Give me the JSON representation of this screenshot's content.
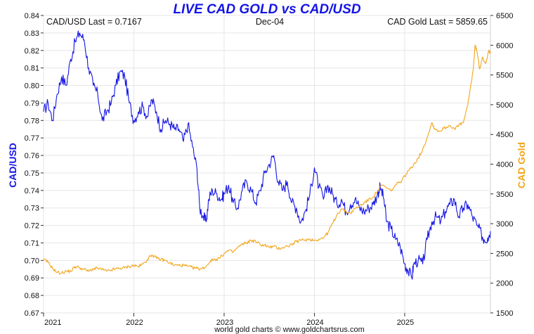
{
  "chart_data": {
    "type": "line",
    "title": "LIVE CAD GOLD vs CAD/USD",
    "label_left_value": "CAD/USD Last = 0.7167",
    "label_center_date": "Dec-04",
    "label_right_value": "CAD Gold Last = 5859.65",
    "ylabel_left": "CAD/USD",
    "ylabel_right": "CAD Gold",
    "credit": "world gold charts © www.goldchartsrus.com",
    "x_ticks": [
      "2021",
      "2022",
      "2023",
      "2024",
      "2025"
    ],
    "xlim": [
      2021.0,
      2025.95
    ],
    "y_left": {
      "range": [
        0.67,
        0.84
      ],
      "ticks": [
        "0.67",
        "0.68",
        "0.69",
        "0.70",
        "0.71",
        "0.72",
        "0.73",
        "0.74",
        "0.75",
        "0.76",
        "0.77",
        "0.78",
        "0.79",
        "0.80",
        "0.81",
        "0.82",
        "0.83",
        "0.84"
      ]
    },
    "y_right": {
      "range": [
        1500,
        6500
      ],
      "ticks": [
        "1500",
        "2000",
        "2500",
        "3000",
        "3500",
        "4000",
        "4500",
        "5000",
        "5500",
        "6000",
        "6500"
      ]
    },
    "grid": true,
    "series": [
      {
        "name": "CAD/USD",
        "axis": "left",
        "color": "#1515e6",
        "points": [
          [
            2021.0,
            0.785
          ],
          [
            2021.05,
            0.79
          ],
          [
            2021.1,
            0.78
          ],
          [
            2021.15,
            0.795
          ],
          [
            2021.2,
            0.805
          ],
          [
            2021.25,
            0.8
          ],
          [
            2021.3,
            0.815
          ],
          [
            2021.35,
            0.825
          ],
          [
            2021.4,
            0.83
          ],
          [
            2021.45,
            0.826
          ],
          [
            2021.5,
            0.81
          ],
          [
            2021.55,
            0.8
          ],
          [
            2021.6,
            0.795
          ],
          [
            2021.65,
            0.78
          ],
          [
            2021.7,
            0.785
          ],
          [
            2021.75,
            0.79
          ],
          [
            2021.8,
            0.8
          ],
          [
            2021.85,
            0.808
          ],
          [
            2021.9,
            0.805
          ],
          [
            2021.95,
            0.79
          ],
          [
            2022.0,
            0.78
          ],
          [
            2022.05,
            0.785
          ],
          [
            2022.1,
            0.788
          ],
          [
            2022.15,
            0.782
          ],
          [
            2022.2,
            0.792
          ],
          [
            2022.25,
            0.785
          ],
          [
            2022.3,
            0.775
          ],
          [
            2022.35,
            0.78
          ],
          [
            2022.4,
            0.778
          ],
          [
            2022.45,
            0.775
          ],
          [
            2022.5,
            0.775
          ],
          [
            2022.55,
            0.768
          ],
          [
            2022.6,
            0.778
          ],
          [
            2022.65,
            0.765
          ],
          [
            2022.7,
            0.752
          ],
          [
            2022.73,
            0.73
          ],
          [
            2022.77,
            0.725
          ],
          [
            2022.8,
            0.722
          ],
          [
            2022.83,
            0.735
          ],
          [
            2022.87,
            0.74
          ],
          [
            2022.92,
            0.738
          ],
          [
            2022.97,
            0.735
          ],
          [
            2023.0,
            0.738
          ],
          [
            2023.05,
            0.743
          ],
          [
            2023.1,
            0.733
          ],
          [
            2023.15,
            0.73
          ],
          [
            2023.2,
            0.74
          ],
          [
            2023.25,
            0.745
          ],
          [
            2023.3,
            0.74
          ],
          [
            2023.35,
            0.733
          ],
          [
            2023.4,
            0.74
          ],
          [
            2023.45,
            0.75
          ],
          [
            2023.5,
            0.755
          ],
          [
            2023.55,
            0.76
          ],
          [
            2023.6,
            0.745
          ],
          [
            2023.65,
            0.74
          ],
          [
            2023.7,
            0.745
          ],
          [
            2023.75,
            0.733
          ],
          [
            2023.8,
            0.73
          ],
          [
            2023.85,
            0.722
          ],
          [
            2023.9,
            0.728
          ],
          [
            2023.95,
            0.738
          ],
          [
            2024.0,
            0.753
          ],
          [
            2024.05,
            0.742
          ],
          [
            2024.1,
            0.735
          ],
          [
            2024.15,
            0.743
          ],
          [
            2024.2,
            0.738
          ],
          [
            2024.25,
            0.732
          ],
          [
            2024.3,
            0.735
          ],
          [
            2024.35,
            0.728
          ],
          [
            2024.4,
            0.732
          ],
          [
            2024.45,
            0.735
          ],
          [
            2024.5,
            0.73
          ],
          [
            2024.55,
            0.728
          ],
          [
            2024.6,
            0.73
          ],
          [
            2024.65,
            0.732
          ],
          [
            2024.7,
            0.738
          ],
          [
            2024.73,
            0.742
          ],
          [
            2024.77,
            0.735
          ],
          [
            2024.8,
            0.722
          ],
          [
            2024.85,
            0.718
          ],
          [
            2024.9,
            0.712
          ],
          [
            2024.95,
            0.708
          ],
          [
            2025.0,
            0.698
          ],
          [
            2025.03,
            0.695
          ],
          [
            2025.08,
            0.69
          ],
          [
            2025.1,
            0.698
          ],
          [
            2025.15,
            0.7
          ],
          [
            2025.2,
            0.698
          ],
          [
            2025.25,
            0.712
          ],
          [
            2025.3,
            0.722
          ],
          [
            2025.35,
            0.725
          ],
          [
            2025.4,
            0.722
          ],
          [
            2025.45,
            0.728
          ],
          [
            2025.5,
            0.732
          ],
          [
            2025.55,
            0.735
          ],
          [
            2025.6,
            0.725
          ],
          [
            2025.65,
            0.73
          ],
          [
            2025.7,
            0.732
          ],
          [
            2025.75,
            0.725
          ],
          [
            2025.8,
            0.72
          ],
          [
            2025.85,
            0.715
          ],
          [
            2025.88,
            0.712
          ],
          [
            2025.92,
            0.713
          ],
          [
            2025.95,
            0.7167
          ]
        ]
      },
      {
        "name": "CAD Gold",
        "axis": "right",
        "color": "#f2a51a",
        "points": [
          [
            2021.0,
            2400
          ],
          [
            2021.05,
            2350
          ],
          [
            2021.1,
            2250
          ],
          [
            2021.15,
            2180
          ],
          [
            2021.2,
            2170
          ],
          [
            2021.25,
            2200
          ],
          [
            2021.3,
            2200
          ],
          [
            2021.35,
            2280
          ],
          [
            2021.4,
            2260
          ],
          [
            2021.45,
            2230
          ],
          [
            2021.5,
            2200
          ],
          [
            2021.55,
            2240
          ],
          [
            2021.6,
            2250
          ],
          [
            2021.65,
            2230
          ],
          [
            2021.7,
            2200
          ],
          [
            2021.75,
            2220
          ],
          [
            2021.8,
            2240
          ],
          [
            2021.85,
            2250
          ],
          [
            2021.9,
            2260
          ],
          [
            2021.95,
            2280
          ],
          [
            2022.0,
            2300
          ],
          [
            2022.05,
            2280
          ],
          [
            2022.1,
            2320
          ],
          [
            2022.15,
            2400
          ],
          [
            2022.2,
            2480
          ],
          [
            2022.25,
            2420
          ],
          [
            2022.3,
            2400
          ],
          [
            2022.35,
            2380
          ],
          [
            2022.4,
            2340
          ],
          [
            2022.45,
            2300
          ],
          [
            2022.5,
            2300
          ],
          [
            2022.55,
            2300
          ],
          [
            2022.6,
            2280
          ],
          [
            2022.65,
            2260
          ],
          [
            2022.7,
            2250
          ],
          [
            2022.75,
            2240
          ],
          [
            2022.8,
            2280
          ],
          [
            2022.85,
            2380
          ],
          [
            2022.9,
            2400
          ],
          [
            2022.95,
            2420
          ],
          [
            2023.0,
            2500
          ],
          [
            2023.05,
            2550
          ],
          [
            2023.1,
            2520
          ],
          [
            2023.15,
            2600
          ],
          [
            2023.2,
            2650
          ],
          [
            2023.25,
            2680
          ],
          [
            2023.3,
            2720
          ],
          [
            2023.35,
            2700
          ],
          [
            2023.4,
            2650
          ],
          [
            2023.45,
            2640
          ],
          [
            2023.5,
            2600
          ],
          [
            2023.55,
            2620
          ],
          [
            2023.6,
            2580
          ],
          [
            2023.65,
            2600
          ],
          [
            2023.7,
            2620
          ],
          [
            2023.75,
            2650
          ],
          [
            2023.8,
            2700
          ],
          [
            2023.85,
            2720
          ],
          [
            2023.9,
            2730
          ],
          [
            2023.95,
            2740
          ],
          [
            2024.0,
            2720
          ],
          [
            2024.05,
            2740
          ],
          [
            2024.1,
            2760
          ],
          [
            2024.15,
            2850
          ],
          [
            2024.2,
            3000
          ],
          [
            2024.25,
            3150
          ],
          [
            2024.3,
            3250
          ],
          [
            2024.35,
            3200
          ],
          [
            2024.4,
            3180
          ],
          [
            2024.45,
            3250
          ],
          [
            2024.5,
            3300
          ],
          [
            2024.55,
            3350
          ],
          [
            2024.6,
            3400
          ],
          [
            2024.65,
            3450
          ],
          [
            2024.7,
            3550
          ],
          [
            2024.75,
            3650
          ],
          [
            2024.8,
            3600
          ],
          [
            2024.85,
            3550
          ],
          [
            2024.9,
            3650
          ],
          [
            2024.95,
            3700
          ],
          [
            2025.0,
            3800
          ],
          [
            2025.05,
            3900
          ],
          [
            2025.1,
            4000
          ],
          [
            2025.15,
            4100
          ],
          [
            2025.2,
            4250
          ],
          [
            2025.25,
            4450
          ],
          [
            2025.3,
            4700
          ],
          [
            2025.33,
            4600
          ],
          [
            2025.38,
            4550
          ],
          [
            2025.43,
            4600
          ],
          [
            2025.5,
            4650
          ],
          [
            2025.55,
            4600
          ],
          [
            2025.6,
            4650
          ],
          [
            2025.65,
            4700
          ],
          [
            2025.7,
            5000
          ],
          [
            2025.73,
            5300
          ],
          [
            2025.76,
            5600
          ],
          [
            2025.78,
            6000
          ],
          [
            2025.8,
            5900
          ],
          [
            2025.83,
            5600
          ],
          [
            2025.86,
            5800
          ],
          [
            2025.9,
            5700
          ],
          [
            2025.93,
            5900
          ],
          [
            2025.95,
            5860
          ]
        ]
      }
    ]
  }
}
